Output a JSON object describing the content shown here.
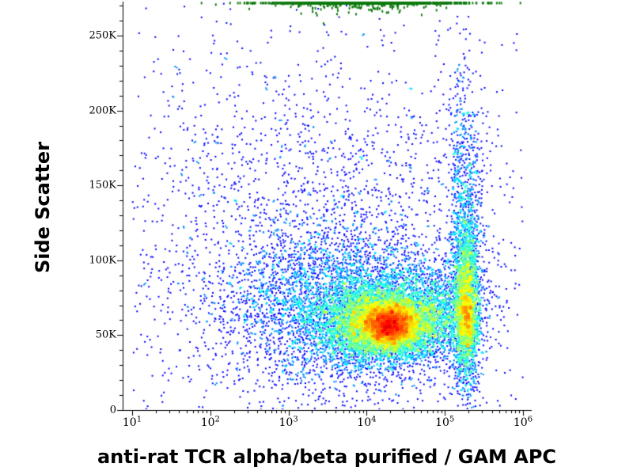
{
  "chart_data": {
    "type": "scatter",
    "subtype": "flow_cytometry_pseudocolor_density",
    "title": "",
    "xlabel": "anti-rat TCR alpha/beta purified / GAM APC",
    "ylabel": "Side Scatter",
    "x_scale": "log10",
    "x_range_log10": [
      1,
      6
    ],
    "y_range": [
      0,
      272000
    ],
    "x_ticks": [
      {
        "base": "10",
        "exp": "1",
        "log10": 1
      },
      {
        "base": "10",
        "exp": "2",
        "log10": 2
      },
      {
        "base": "10",
        "exp": "3",
        "log10": 3
      },
      {
        "base": "10",
        "exp": "4",
        "log10": 4
      },
      {
        "base": "10",
        "exp": "5",
        "log10": 5
      },
      {
        "base": "10",
        "exp": "6",
        "log10": 6
      }
    ],
    "y_ticks": [
      {
        "label": "0",
        "value": 0
      },
      {
        "label": "50K",
        "value": 50000
      },
      {
        "label": "100K",
        "value": 100000
      },
      {
        "label": "150K",
        "value": 150000
      },
      {
        "label": "200K",
        "value": 200000
      },
      {
        "label": "250K",
        "value": 250000
      }
    ],
    "y_minor_step": 10000,
    "grid": false,
    "legend": "none",
    "colormap": "jet",
    "axis_color": "#000000",
    "background": "#ffffff",
    "low_density_color": "#0000ff",
    "high_density_color": "#e60000",
    "seed": 1234,
    "point_size": 2,
    "populations": [
      {
        "name": "main-cluster-core",
        "count": 3500,
        "x_log_mean": 4.3,
        "x_log_sd": 0.16,
        "y_mean": 57000,
        "y_sd": 6500
      },
      {
        "name": "main-cluster",
        "count": 6000,
        "x_log_mean": 4.2,
        "x_log_sd": 0.38,
        "y_mean": 58000,
        "y_sd": 13000
      },
      {
        "name": "main-cluster-spread",
        "count": 3500,
        "x_log_mean": 3.7,
        "x_log_sd": 0.75,
        "y_mean": 70000,
        "y_sd": 26000
      },
      {
        "name": "bridge-population",
        "count": 1200,
        "x_log_mean": 4.85,
        "x_log_sd": 0.3,
        "y_mean": 65000,
        "y_sd": 15000
      },
      {
        "name": "right-edge-smear",
        "count": 2200,
        "x_log_mean": 5.28,
        "x_log_sd": 0.09,
        "y_mean": 78000,
        "y_sd": 32000
      },
      {
        "name": "right-edge-core",
        "count": 900,
        "x_log_mean": 5.28,
        "x_log_sd": 0.07,
        "y_mean": 62000,
        "y_sd": 13000
      },
      {
        "name": "right-edge-upper",
        "count": 600,
        "x_log_mean": 5.25,
        "x_log_sd": 0.12,
        "y_mean": 150000,
        "y_sd": 45000
      },
      {
        "name": "background-scatter",
        "count": 2600,
        "x_log_mean": 3.4,
        "x_log_sd": 1.4,
        "y_mean": 110000,
        "y_sd": 70000
      },
      {
        "name": "off-scale-top-band",
        "count": 1300,
        "x_log_mean": 4.0,
        "x_log_sd": 0.6,
        "y_mean": 278000,
        "y_sd": 5000,
        "clamp_top": true,
        "fixed_color": "#0e7a0e"
      }
    ]
  }
}
